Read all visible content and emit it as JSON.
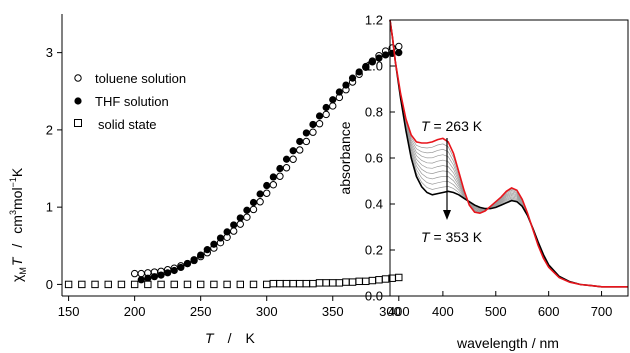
{
  "chart_data": [
    {
      "type": "scatter",
      "xlabel_italic": "T",
      "xlabel_unit": "K",
      "ylabel": "χMT / cm³mol⁻¹K",
      "ylabel_parts": {
        "chi": "χ",
        "sub": "M",
        "T": "T",
        "slash": "/",
        "unit": "cm",
        "sup3": "3",
        "mol": "mol",
        "supm1": "−1",
        "K": "K"
      },
      "xlim": [
        145,
        410
      ],
      "ylim": [
        -0.15,
        3.5
      ],
      "xticks": [
        150,
        200,
        250,
        300,
        350,
        400
      ],
      "yticks": [
        0,
        1,
        2,
        3
      ],
      "grid": false,
      "legend_position": "top-left",
      "series": [
        {
          "name": "toluene solution",
          "marker": "open-circle",
          "x": [
            200,
            205,
            210,
            215,
            220,
            225,
            230,
            235,
            240,
            245,
            250,
            255,
            260,
            265,
            270,
            275,
            280,
            285,
            290,
            295,
            300,
            305,
            310,
            315,
            320,
            325,
            330,
            335,
            340,
            345,
            350,
            355,
            360,
            365,
            370,
            375,
            380,
            385,
            390,
            395,
            400
          ],
          "y": [
            0.14,
            0.14,
            0.15,
            0.16,
            0.17,
            0.19,
            0.21,
            0.24,
            0.27,
            0.31,
            0.36,
            0.41,
            0.47,
            0.54,
            0.61,
            0.69,
            0.78,
            0.87,
            0.97,
            1.07,
            1.18,
            1.29,
            1.4,
            1.51,
            1.62,
            1.74,
            1.85,
            1.97,
            2.08,
            2.2,
            2.31,
            2.42,
            2.52,
            2.62,
            2.72,
            2.81,
            2.89,
            2.96,
            3.02,
            3.06,
            3.08
          ]
        },
        {
          "name": "THF solution",
          "marker": "filled-circle",
          "x": [
            205,
            210,
            215,
            220,
            225,
            230,
            235,
            240,
            245,
            250,
            255,
            260,
            265,
            270,
            275,
            280,
            285,
            290,
            295,
            300,
            305,
            310,
            315,
            320,
            325,
            330,
            335,
            340,
            345,
            350,
            355,
            360,
            365,
            370,
            375,
            380,
            385,
            390,
            395,
            400
          ],
          "y": [
            0.06,
            0.08,
            0.1,
            0.12,
            0.15,
            0.18,
            0.22,
            0.27,
            0.32,
            0.38,
            0.45,
            0.52,
            0.6,
            0.68,
            0.77,
            0.86,
            0.96,
            1.06,
            1.17,
            1.28,
            1.39,
            1.5,
            1.62,
            1.73,
            1.85,
            1.96,
            2.07,
            2.18,
            2.29,
            2.39,
            2.49,
            2.58,
            2.67,
            2.75,
            2.82,
            2.88,
            2.93,
            2.97,
            2.99,
            3.0
          ]
        },
        {
          "name": "solid state",
          "marker": "open-square",
          "x": [
            150,
            160,
            170,
            180,
            190,
            200,
            210,
            220,
            230,
            240,
            250,
            260,
            270,
            280,
            290,
            300,
            305,
            310,
            315,
            320,
            325,
            330,
            335,
            340,
            345,
            350,
            355,
            360,
            365,
            370,
            375,
            380,
            385,
            390,
            395,
            400
          ],
          "y": [
            0.0,
            0.0,
            0.0,
            0.0,
            0.0,
            0.0,
            0.0,
            0.0,
            0.0,
            0.0,
            0.0,
            0.0,
            0.0,
            0.0,
            0.0,
            0.0,
            0.01,
            0.01,
            0.01,
            0.01,
            0.01,
            0.01,
            0.01,
            0.02,
            0.02,
            0.02,
            0.02,
            0.03,
            0.03,
            0.04,
            0.04,
            0.05,
            0.06,
            0.07,
            0.08,
            0.09
          ]
        }
      ]
    },
    {
      "type": "line",
      "xlabel": "wavelength / nm",
      "ylabel": "absorbance",
      "xlim": [
        300,
        750
      ],
      "ylim": [
        0.0,
        1.2
      ],
      "xticks": [
        300,
        400,
        500,
        600,
        700
      ],
      "yticks": [
        0.0,
        0.2,
        0.4,
        0.6,
        0.8,
        1.0,
        1.2
      ],
      "grid": false,
      "annotations": [
        {
          "italic": "T",
          "text": " = 263 K"
        },
        {
          "italic": "T",
          "text": " = 353 K"
        }
      ],
      "series": [
        {
          "name": "T = 263 K",
          "color": "#e8141b",
          "x": [
            300,
            305,
            310,
            320,
            330,
            340,
            350,
            360,
            370,
            380,
            390,
            400,
            410,
            420,
            430,
            440,
            450,
            460,
            470,
            480,
            490,
            500,
            510,
            520,
            530,
            540,
            550,
            560,
            570,
            580,
            590,
            600,
            620,
            640,
            660,
            680,
            700,
            720,
            750
          ],
          "y": [
            1.2,
            1.12,
            1.02,
            0.88,
            0.77,
            0.7,
            0.67,
            0.665,
            0.665,
            0.67,
            0.68,
            0.685,
            0.67,
            0.62,
            0.54,
            0.46,
            0.395,
            0.365,
            0.36,
            0.37,
            0.39,
            0.41,
            0.43,
            0.455,
            0.47,
            0.46,
            0.42,
            0.36,
            0.29,
            0.22,
            0.165,
            0.125,
            0.08,
            0.06,
            0.05,
            0.045,
            0.04,
            0.04,
            0.04
          ]
        },
        {
          "name": "T = 353 K",
          "color": "#000000",
          "x": [
            300,
            305,
            310,
            320,
            330,
            340,
            350,
            360,
            370,
            380,
            390,
            400,
            410,
            420,
            430,
            440,
            450,
            460,
            470,
            480,
            490,
            500,
            510,
            520,
            530,
            540,
            550,
            560,
            570,
            580,
            590,
            600,
            620,
            640,
            660,
            680,
            700,
            720,
            750
          ],
          "y": [
            1.2,
            1.12,
            1.02,
            0.86,
            0.72,
            0.6,
            0.52,
            0.475,
            0.45,
            0.44,
            0.445,
            0.45,
            0.455,
            0.45,
            0.44,
            0.425,
            0.41,
            0.395,
            0.385,
            0.38,
            0.38,
            0.385,
            0.395,
            0.405,
            0.415,
            0.41,
            0.39,
            0.35,
            0.295,
            0.235,
            0.18,
            0.135,
            0.085,
            0.062,
            0.05,
            0.045,
            0.04,
            0.04,
            0.04
          ]
        }
      ]
    }
  ]
}
